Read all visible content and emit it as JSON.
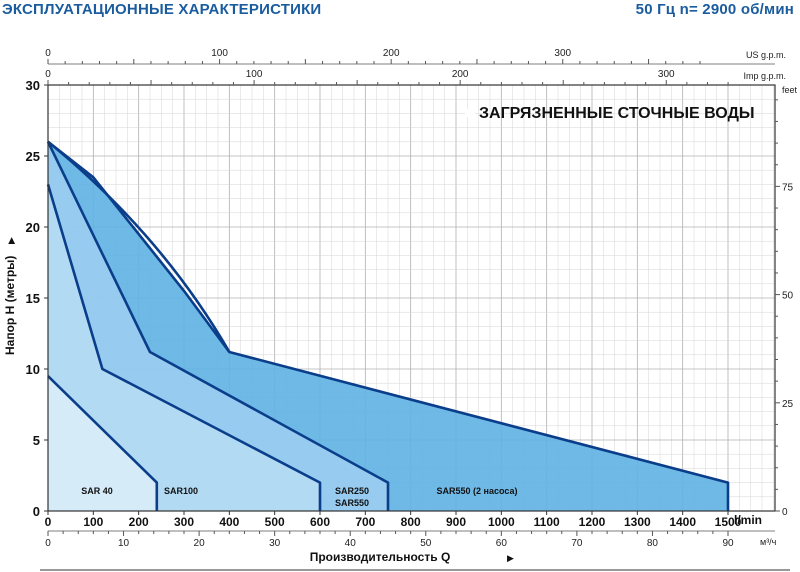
{
  "header": {
    "title": "ЭКСПЛУАТАЦИОННЫЕ ХАРАКТЕРИСТИКИ",
    "frequency": "50 Гц n= 2900 об/мин"
  },
  "chart_data": {
    "type": "area",
    "title": "ЗАГРЯЗНЕННЫЕ СТОЧНЫЕ ВОДЫ",
    "ylabel": "Напор H (метры)",
    "xlabel": "Производительность Q",
    "x_unit": "l/min",
    "xlim": [
      0,
      1500
    ],
    "ylim": [
      0,
      30
    ],
    "x_ticks": [
      "0",
      "100",
      "200",
      "300",
      "400",
      "500",
      "600",
      "700",
      "800",
      "900",
      "1000",
      "1100",
      "1200",
      "1300",
      "1400",
      "1500"
    ],
    "y_ticks": [
      "0",
      "5",
      "10",
      "15",
      "20",
      "25",
      "30"
    ],
    "secondary_axes": {
      "top_us": {
        "label": "US g.p.m.",
        "ticks": [
          "0",
          "100",
          "200",
          "300"
        ],
        "values": [
          0,
          100,
          200,
          300
        ]
      },
      "top_imp": {
        "label": "Imp g.p.m.",
        "ticks": [
          "0",
          "100",
          "200",
          "300"
        ],
        "values": [
          0,
          100,
          200,
          300
        ]
      },
      "right_feet": {
        "label": "feet",
        "ticks": [
          "0",
          "25",
          "50",
          "75"
        ],
        "values": [
          0,
          25,
          50,
          75
        ]
      },
      "bottom_m3h": {
        "label": "м³/ч",
        "ticks": [
          "0",
          "10",
          "20",
          "30",
          "40",
          "50",
          "60",
          "70",
          "80",
          "90"
        ],
        "values": [
          0,
          10,
          20,
          30,
          40,
          50,
          60,
          70,
          80,
          90
        ]
      }
    },
    "series": [
      {
        "name": "SAR 40",
        "points": [
          [
            0,
            9.5
          ],
          [
            240,
            2
          ],
          [
            240,
            0
          ]
        ]
      },
      {
        "name": "SAR100",
        "points": [
          [
            0,
            23
          ],
          [
            120,
            10
          ],
          [
            600,
            2
          ],
          [
            600,
            0
          ]
        ]
      },
      {
        "name": "SAR250 SAR550",
        "points": [
          [
            0,
            26
          ],
          [
            225,
            11.2
          ],
          [
            750,
            2
          ],
          [
            750,
            0
          ]
        ]
      },
      {
        "name": "SAR550 (2 насоса)",
        "points": [
          [
            0,
            26
          ],
          [
            100,
            23.5
          ],
          [
            200,
            19.5
          ],
          [
            300,
            15.5
          ],
          [
            400,
            11.2
          ],
          [
            1500,
            2
          ],
          [
            1500,
            0
          ]
        ]
      }
    ],
    "colors": {
      "outline": "#0a3e8a",
      "sar40_fill": "#d8ecf8",
      "sar100_fill": "#b6dcf3",
      "sar250_fill": "#9bcdef",
      "sar550x2_fill": "#5fb1e4",
      "grid": "#b8b8b8",
      "text": "#1a5c9e"
    }
  }
}
